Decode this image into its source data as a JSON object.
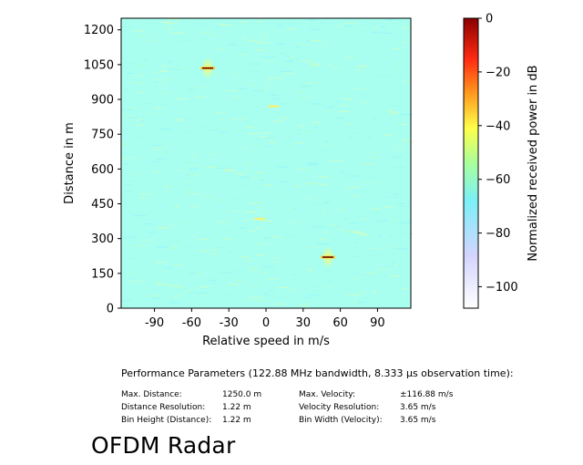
{
  "chart_data": {
    "type": "heatmap",
    "xlabel": "Relative speed in m/s",
    "ylabel": "Distance in m",
    "xlim": [
      -116.88,
      116.88
    ],
    "ylim": [
      0,
      1250
    ],
    "x_ticks": [
      -90,
      -60,
      -30,
      0,
      30,
      60,
      90
    ],
    "y_ticks": [
      0,
      150,
      300,
      450,
      600,
      750,
      900,
      1050,
      1200
    ],
    "background_level_db": -62,
    "targets": [
      {
        "speed": -47,
        "distance": 1035,
        "level_db": -2
      },
      {
        "speed": 50,
        "distance": 220,
        "level_db": -3
      },
      {
        "speed": 6,
        "distance": 870,
        "level_db": -45
      },
      {
        "speed": -5,
        "distance": 385,
        "level_db": -45
      }
    ],
    "colorbar": {
      "label": "Normalized received power in dB",
      "range": [
        -108,
        0
      ],
      "ticks": [
        0,
        -20,
        -40,
        -60,
        -80,
        -100
      ],
      "tick_labels": [
        "0",
        "−20",
        "−40",
        "−60",
        "−80",
        "−100"
      ]
    }
  },
  "performance": {
    "title": "Performance Parameters (122.88 MHz bandwidth, 8.333 µs observation time):",
    "rows": [
      {
        "label1": "Max. Distance:",
        "value1": "1250.0 m",
        "label2": "Max. Velocity:",
        "value2": "±116.88 m/s"
      },
      {
        "label1": "Distance Resolution:",
        "value1": "1.22 m",
        "label2": "Velocity Resolution:",
        "value2": "3.65 m/s"
      },
      {
        "label1": "Bin Height (Distance):",
        "value1": "1.22 m",
        "label2": "Bin Width (Velocity):",
        "value2": "3.65 m/s"
      }
    ]
  },
  "app_title": "OFDM Radar"
}
